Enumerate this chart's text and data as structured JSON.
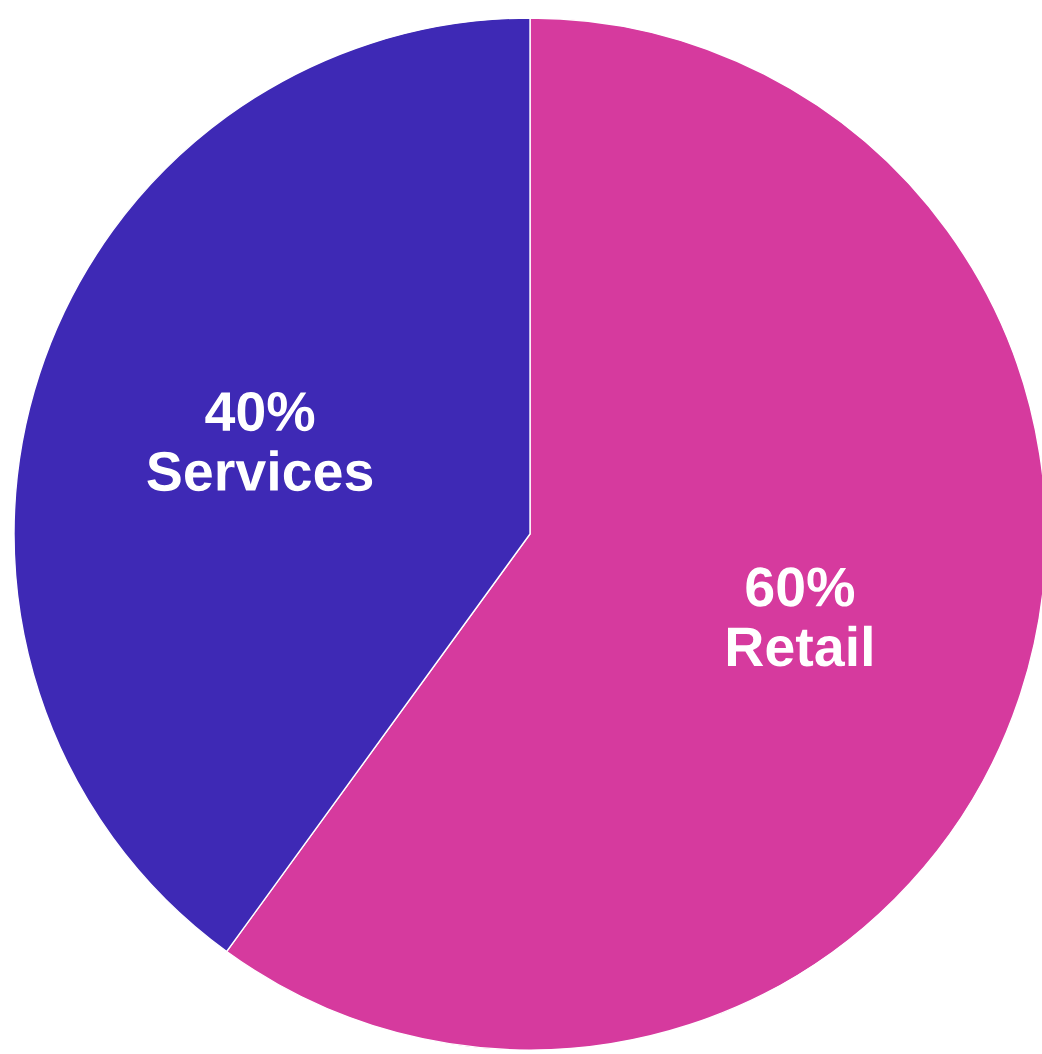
{
  "chart_data": {
    "type": "pie",
    "categories": [
      "Retail",
      "Services"
    ],
    "values": [
      60,
      40
    ],
    "value_labels": [
      "60%",
      "40%"
    ],
    "colors": [
      "#d63a9e",
      "#3e29b5"
    ]
  }
}
